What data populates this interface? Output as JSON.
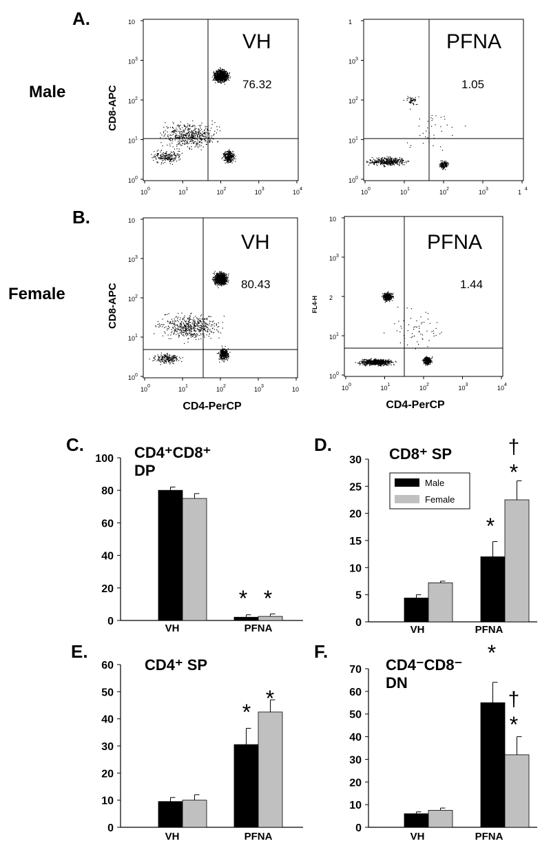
{
  "panels": {
    "a": "A.",
    "b": "B.",
    "c": "C.",
    "d": "D.",
    "e": "E.",
    "f": "F."
  },
  "rows": {
    "male": "Male",
    "female": "Female"
  },
  "flow_plots": [
    {
      "id": "a-vh",
      "label": "VH",
      "value": "76.32",
      "ylabel": "CD8-APC",
      "xlabel": "",
      "x_ticks": [
        "10",
        "10",
        "10",
        "10",
        "10"
      ],
      "x_exps": [
        "0",
        "1",
        "2",
        "3",
        "4"
      ],
      "y_ticks": [
        "10",
        "10",
        "10",
        "10",
        "10"
      ],
      "y_exps": [
        "0",
        "1",
        "2",
        "3",
        ""
      ]
    },
    {
      "id": "a-pfna",
      "label": "PFNA",
      "value": "1.05",
      "ylabel": "",
      "xlabel": "",
      "x_ticks": [
        "10",
        "10",
        "10",
        "10",
        "1"
      ],
      "x_exps": [
        "0",
        "1",
        "2",
        "3",
        "4"
      ],
      "y_ticks": [
        "10",
        "10",
        "10",
        "10",
        "1"
      ],
      "y_exps": [
        "0",
        "1",
        "2",
        "3",
        ""
      ]
    },
    {
      "id": "b-vh",
      "label": "VH",
      "value": "80.43",
      "ylabel": "CD8-APC",
      "xlabel": "CD4-PerCP",
      "x_ticks": [
        "10",
        "10",
        "10",
        "10",
        "10"
      ],
      "x_exps": [
        "0",
        "1",
        "2",
        "3",
        ""
      ],
      "y_ticks": [
        "10",
        "10",
        "10",
        "10",
        "10"
      ],
      "y_exps": [
        "0",
        "1",
        "2",
        "3",
        ""
      ]
    },
    {
      "id": "b-pfna",
      "label": "PFNA",
      "value": "1.44",
      "ylabel": "FL4-H",
      "xlabel": "CD4-PerCP",
      "x_ticks": [
        "10",
        "10",
        "10",
        "10",
        "10"
      ],
      "x_exps": [
        "0",
        "1",
        "2",
        "3",
        "4"
      ],
      "y_ticks": [
        "10",
        "10",
        "2",
        "10",
        "10"
      ],
      "y_exps": [
        "0",
        "1",
        "",
        "3",
        ""
      ]
    }
  ],
  "legend": {
    "male": "Male",
    "female": "Female"
  },
  "colors": {
    "male": "#000000",
    "female": "#c0c0c0"
  },
  "chart_data": [
    {
      "id": "c",
      "type": "bar",
      "title": "CD4⁺CD8⁺ DP",
      "categories": [
        "VH",
        "PFNA"
      ],
      "ylim": [
        0,
        100
      ],
      "yticks": [
        0,
        20,
        40,
        60,
        80,
        100
      ],
      "series": [
        {
          "name": "Male",
          "values": [
            80,
            2
          ],
          "errors": [
            2,
            1.5
          ]
        },
        {
          "name": "Female",
          "values": [
            75,
            2.5
          ],
          "errors": [
            3,
            1.5
          ]
        }
      ],
      "annotations": [
        "*",
        "*"
      ]
    },
    {
      "id": "d",
      "type": "bar",
      "title": "CD8⁺ SP",
      "categories": [
        "VH",
        "PFNA"
      ],
      "ylim": [
        0,
        30
      ],
      "yticks": [
        0,
        5,
        10,
        15,
        20,
        25,
        30
      ],
      "series": [
        {
          "name": "Male",
          "values": [
            4.4,
            12
          ],
          "errors": [
            0.6,
            2.8
          ]
        },
        {
          "name": "Female",
          "values": [
            7.2,
            22.5
          ],
          "errors": [
            0.3,
            3.5
          ]
        }
      ],
      "annotations": [
        "*",
        "*",
        "†"
      ]
    },
    {
      "id": "e",
      "type": "bar",
      "title": "CD4⁺ SP",
      "categories": [
        "VH",
        "PFNA"
      ],
      "ylim": [
        0,
        60
      ],
      "yticks": [
        0,
        10,
        20,
        30,
        40,
        50,
        60
      ],
      "series": [
        {
          "name": "Male",
          "values": [
            9.5,
            30.5
          ],
          "errors": [
            1.5,
            6
          ]
        },
        {
          "name": "Female",
          "values": [
            10,
            42.5
          ],
          "errors": [
            2,
            4.5
          ]
        }
      ],
      "annotations": [
        "*",
        "*"
      ]
    },
    {
      "id": "f",
      "type": "bar",
      "title": "CD4⁻CD8⁻ DN",
      "categories": [
        "VH",
        "PFNA"
      ],
      "ylim": [
        0,
        70
      ],
      "yticks": [
        0,
        10,
        20,
        30,
        40,
        50,
        60,
        70
      ],
      "series": [
        {
          "name": "Male",
          "values": [
            6,
            55
          ],
          "errors": [
            0.8,
            9
          ]
        },
        {
          "name": "Female",
          "values": [
            7.5,
            32
          ],
          "errors": [
            1,
            8
          ]
        }
      ],
      "annotations": [
        "*",
        "*",
        "†"
      ]
    }
  ]
}
